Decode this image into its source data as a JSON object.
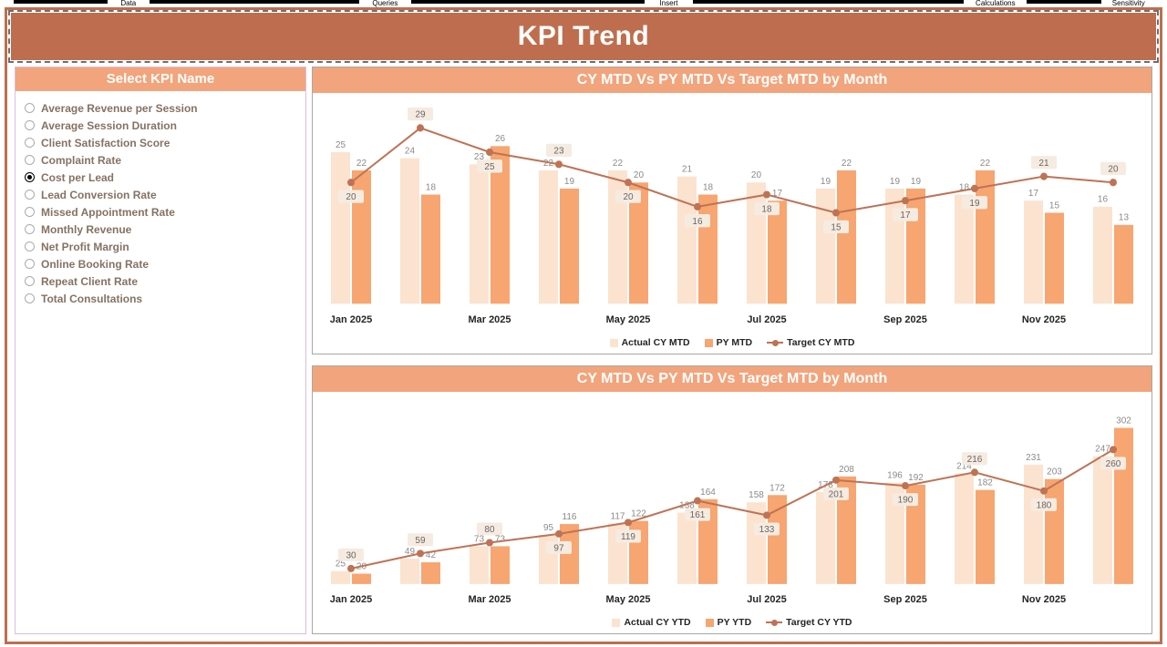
{
  "ribbon": {
    "tabs": [
      "Data",
      "Queries",
      "Insert",
      "Calculations",
      "Sensitivity"
    ]
  },
  "banner": {
    "title": "KPI Trend"
  },
  "slicer": {
    "header": "Select KPI Name",
    "items": [
      {
        "label": "Average Revenue per Session",
        "selected": false
      },
      {
        "label": "Average Session Duration",
        "selected": false
      },
      {
        "label": "Client Satisfaction Score",
        "selected": false
      },
      {
        "label": "Complaint Rate",
        "selected": false
      },
      {
        "label": "Cost per Lead",
        "selected": true
      },
      {
        "label": "Lead Conversion Rate",
        "selected": false
      },
      {
        "label": "Missed Appointment Rate",
        "selected": false
      },
      {
        "label": "Monthly Revenue",
        "selected": false
      },
      {
        "label": "Net Profit Margin",
        "selected": false
      },
      {
        "label": "Online Booking Rate",
        "selected": false
      },
      {
        "label": "Repeat Client Rate",
        "selected": false
      },
      {
        "label": "Total Consultations",
        "selected": false
      }
    ]
  },
  "colors": {
    "banner": "#BE6E4E",
    "header_salmon": "#F2A47C",
    "bar_light": "#FBE3D0",
    "bar_dark": "#F7A571",
    "line": "#BE7355"
  },
  "chart_data": [
    {
      "type": "combo_bar_line",
      "title": "CY MTD Vs PY MTD Vs Target MTD by Month",
      "categories": [
        "Jan 2025",
        "Feb 2025",
        "Mar 2025",
        "Apr 2025",
        "May 2025",
        "Jun 2025",
        "Jul 2025",
        "Aug 2025",
        "Sep 2025",
        "Oct 2025",
        "Nov 2025",
        "Dec 2025"
      ],
      "x_tick_labels": [
        "Jan 2025",
        "Mar 2025",
        "May 2025",
        "Jul 2025",
        "Sep 2025",
        "Nov 2025"
      ],
      "series": [
        {
          "name": "Actual CY MTD",
          "type": "bar",
          "color": "#FBE3D0",
          "values": [
            25,
            24,
            23,
            22,
            22,
            21,
            20,
            19,
            19,
            18,
            17,
            16
          ]
        },
        {
          "name": "PY MTD",
          "type": "bar",
          "color": "#F7A571",
          "values": [
            22,
            18,
            26,
            19,
            20,
            18,
            17,
            22,
            19,
            22,
            15,
            13
          ]
        },
        {
          "name": "Target CY MTD",
          "type": "line",
          "color": "#BE7355",
          "values": [
            20,
            29,
            25,
            23,
            20,
            16,
            18,
            15,
            17,
            19,
            21,
            20
          ]
        }
      ],
      "ylim": [
        0,
        30
      ],
      "grid": false,
      "legend_position": "bottom"
    },
    {
      "type": "combo_bar_line",
      "title": "CY MTD Vs PY MTD Vs Target MTD by Month",
      "categories": [
        "Jan 2025",
        "Feb 2025",
        "Mar 2025",
        "Apr 2025",
        "May 2025",
        "Jun 2025",
        "Jul 2025",
        "Aug 2025",
        "Sep 2025",
        "Oct 2025",
        "Nov 2025",
        "Dec 2025"
      ],
      "x_tick_labels": [
        "Jan 2025",
        "Mar 2025",
        "May 2025",
        "Jul 2025",
        "Sep 2025",
        "Nov 2025"
      ],
      "series": [
        {
          "name": "Actual CY YTD",
          "type": "bar",
          "color": "#FBE3D0",
          "values": [
            25,
            49,
            73,
            95,
            117,
            138,
            158,
            178,
            196,
            214,
            231,
            247
          ]
        },
        {
          "name": "PY YTD",
          "type": "bar",
          "color": "#F7A571",
          "values": [
            20,
            42,
            73,
            116,
            122,
            164,
            172,
            208,
            192,
            182,
            203,
            302
          ]
        },
        {
          "name": "Target CY YTD",
          "type": "line",
          "color": "#BE7355",
          "values": [
            30,
            59,
            80,
            97,
            119,
            161,
            133,
            201,
            190,
            216,
            180,
            260
          ]
        }
      ],
      "ylim": [
        0,
        310
      ],
      "grid": false,
      "legend_position": "bottom"
    }
  ]
}
